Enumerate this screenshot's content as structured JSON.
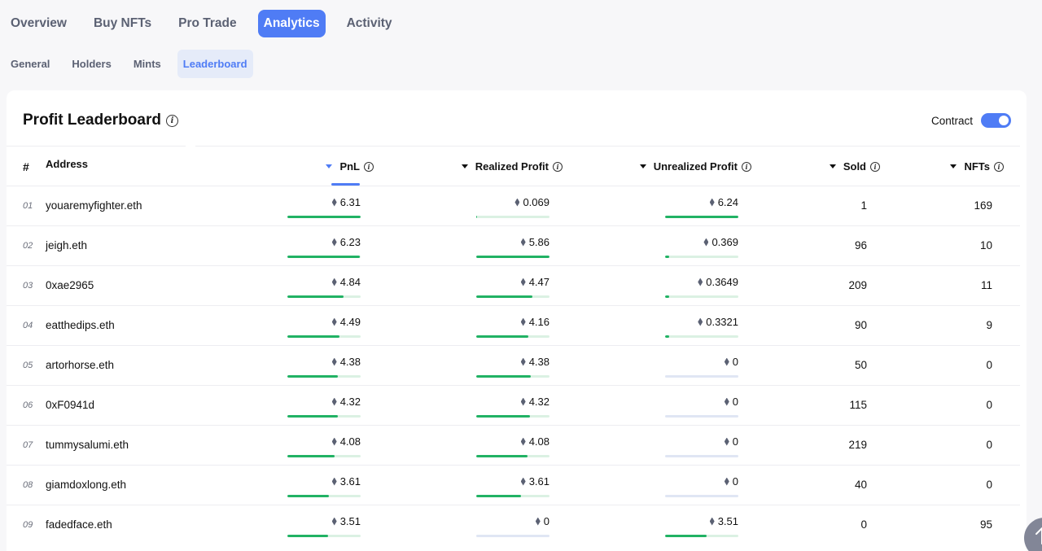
{
  "main_tabs": [
    {
      "label": "Overview",
      "active": false
    },
    {
      "label": "Buy NFTs",
      "active": false
    },
    {
      "label": "Pro Trade",
      "active": false
    },
    {
      "label": "Analytics",
      "active": true
    },
    {
      "label": "Activity",
      "active": false
    }
  ],
  "sub_tabs": [
    {
      "label": "General",
      "active": false
    },
    {
      "label": "Holders",
      "active": false
    },
    {
      "label": "Mints",
      "active": false
    },
    {
      "label": "Leaderboard",
      "active": true
    }
  ],
  "card": {
    "title": "Profit Leaderboard",
    "contract_label": "Contract",
    "contract_toggle_on": true
  },
  "table": {
    "headers": {
      "rank": "#",
      "address": "Address",
      "pnl": "PnL",
      "realized": "Realized Profit",
      "unrealized": "Unrealized Profit",
      "sold": "Sold",
      "nfts": "NFTs"
    },
    "active_sort": "pnl",
    "rows": [
      {
        "rank": "01",
        "address": "youaremyfighter.eth",
        "pnl": "6.31",
        "pnl_frac": 1.0,
        "realized": "0.069",
        "realized_frac": 0.011,
        "unrealized": "6.24",
        "unrealized_frac": 1.0,
        "sold": "1",
        "nfts": "169"
      },
      {
        "rank": "02",
        "address": "jeigh.eth",
        "pnl": "6.23",
        "pnl_frac": 0.987,
        "realized": "5.86",
        "realized_frac": 1.0,
        "unrealized": "0.369",
        "unrealized_frac": 0.06,
        "sold": "96",
        "nfts": "10"
      },
      {
        "rank": "03",
        "address": "0xae2965",
        "pnl": "4.84",
        "pnl_frac": 0.767,
        "realized": "4.47",
        "realized_frac": 0.763,
        "unrealized": "0.3649",
        "unrealized_frac": 0.059,
        "sold": "209",
        "nfts": "11"
      },
      {
        "rank": "04",
        "address": "eatthedips.eth",
        "pnl": "4.49",
        "pnl_frac": 0.712,
        "realized": "4.16",
        "realized_frac": 0.71,
        "unrealized": "0.3321",
        "unrealized_frac": 0.053,
        "sold": "90",
        "nfts": "9"
      },
      {
        "rank": "05",
        "address": "artorhorse.eth",
        "pnl": "4.38",
        "pnl_frac": 0.694,
        "realized": "4.38",
        "realized_frac": 0.747,
        "unrealized": "0",
        "unrealized_frac": 0,
        "sold": "50",
        "nfts": "0"
      },
      {
        "rank": "06",
        "address": "0xF0941d",
        "pnl": "4.32",
        "pnl_frac": 0.685,
        "realized": "4.32",
        "realized_frac": 0.737,
        "unrealized": "0",
        "unrealized_frac": 0,
        "sold": "115",
        "nfts": "0"
      },
      {
        "rank": "07",
        "address": "tummysalumi.eth",
        "pnl": "4.08",
        "pnl_frac": 0.647,
        "realized": "4.08",
        "realized_frac": 0.696,
        "unrealized": "0",
        "unrealized_frac": 0,
        "sold": "219",
        "nfts": "0"
      },
      {
        "rank": "08",
        "address": "giamdoxlong.eth",
        "pnl": "3.61",
        "pnl_frac": 0.572,
        "realized": "3.61",
        "realized_frac": 0.616,
        "unrealized": "0",
        "unrealized_frac": 0,
        "sold": "40",
        "nfts": "0"
      },
      {
        "rank": "09",
        "address": "fadedface.eth",
        "pnl": "3.51",
        "pnl_frac": 0.556,
        "realized": "0",
        "realized_frac": 0,
        "unrealized": "3.51",
        "unrealized_frac": 0.563,
        "sold": "0",
        "nfts": "95"
      }
    ]
  },
  "scroll_top_icon": "arrow-up-icon",
  "colors": {
    "accent": "#4f7cf5",
    "bar_green": "#21b264",
    "bar_track": "#dbf1e3",
    "bar_track_zero": "#e0e6f4"
  }
}
